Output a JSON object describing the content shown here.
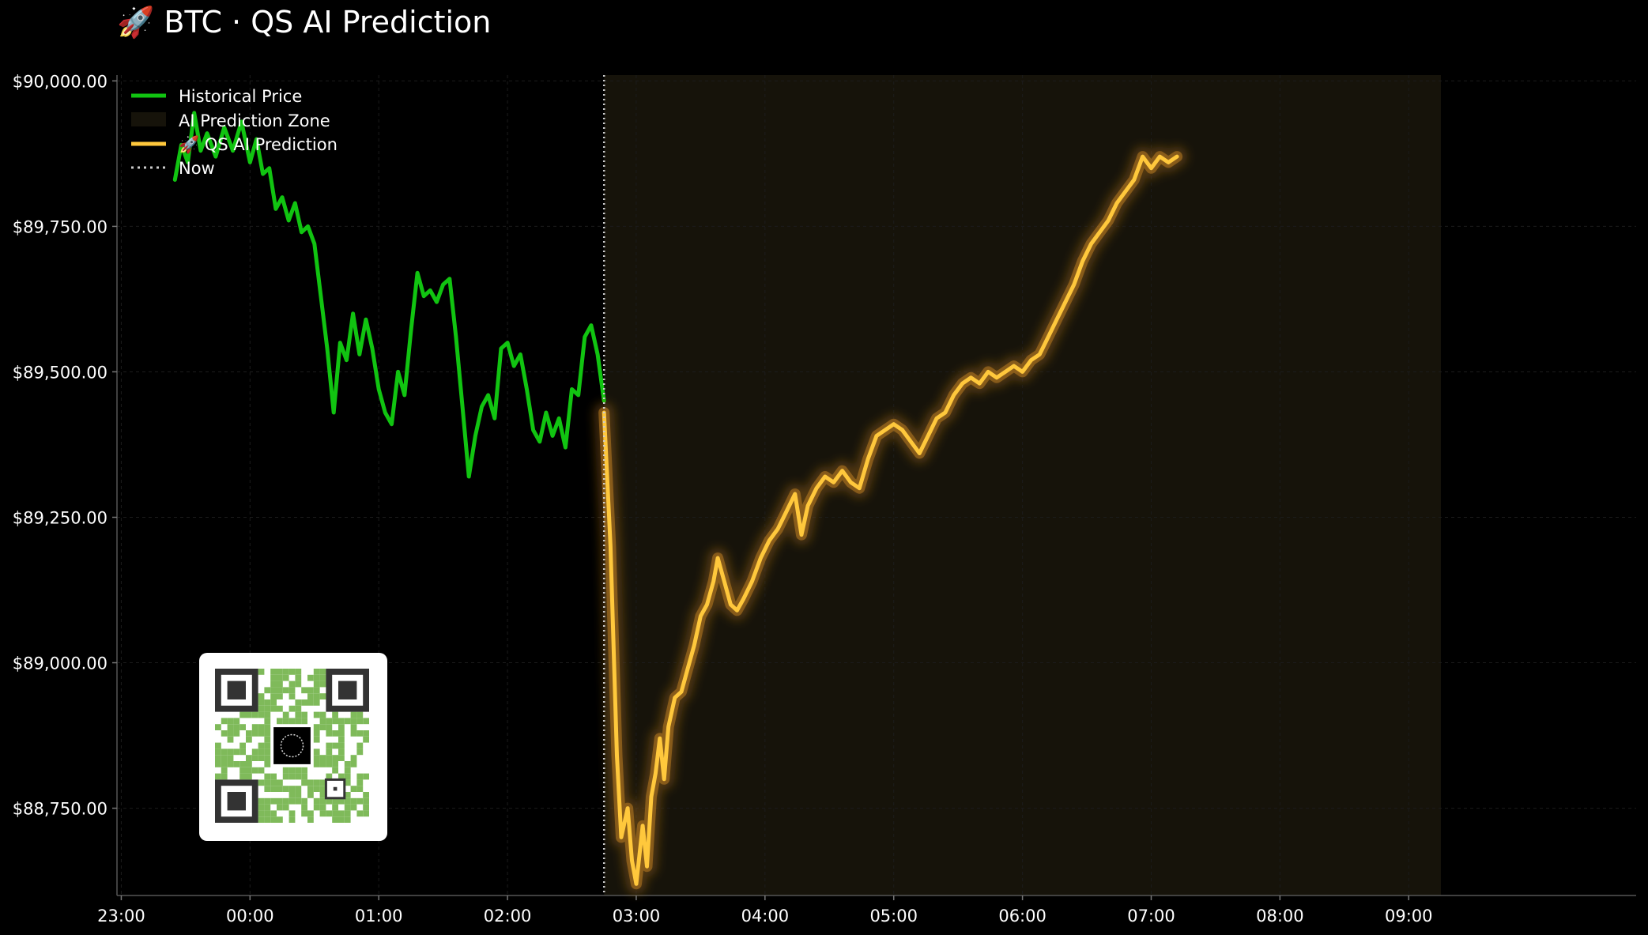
{
  "chart_data": {
    "type": "line",
    "title": "🚀 BTC · QS AI Prediction",
    "xlabel": "",
    "ylabel": "",
    "x_ticks": [
      "23:00",
      "00:00",
      "01:00",
      "02:00",
      "03:00",
      "04:00",
      "05:00",
      "06:00",
      "07:00",
      "08:00",
      "09:00"
    ],
    "y_ticks": [
      "$88,750.00",
      "$89,000.00",
      "$89,250.00",
      "$89,500.00",
      "$89,750.00",
      "$90,000.00"
    ],
    "ylim": [
      88600,
      90010
    ],
    "xlim_hours": [
      "22:58",
      "10:46"
    ],
    "grid": true,
    "legend": {
      "position": "top-left",
      "entries": [
        "Historical Price",
        "AI Prediction Zone",
        "🚀 QS AI Prediction",
        "Now"
      ]
    },
    "now_time": "02:45",
    "prediction_zone": [
      "02:45",
      "09:15"
    ],
    "series": [
      {
        "name": "Historical Price",
        "color": "#11c411",
        "points": [
          [
            "23:25",
            89830
          ],
          [
            "23:28",
            89890
          ],
          [
            "23:31",
            89860
          ],
          [
            "23:34",
            89945
          ],
          [
            "23:37",
            89880
          ],
          [
            "23:40",
            89910
          ],
          [
            "23:44",
            89870
          ],
          [
            "23:48",
            89920
          ],
          [
            "23:52",
            89880
          ],
          [
            "23:56",
            89930
          ],
          [
            "00:00",
            89860
          ],
          [
            "00:03",
            89900
          ],
          [
            "00:06",
            89840
          ],
          [
            "00:09",
            89850
          ],
          [
            "00:12",
            89780
          ],
          [
            "00:15",
            89800
          ],
          [
            "00:18",
            89760
          ],
          [
            "00:21",
            89790
          ],
          [
            "00:24",
            89740
          ],
          [
            "00:27",
            89750
          ],
          [
            "00:30",
            89720
          ],
          [
            "00:33",
            89630
          ],
          [
            "00:36",
            89540
          ],
          [
            "00:39",
            89430
          ],
          [
            "00:42",
            89550
          ],
          [
            "00:45",
            89520
          ],
          [
            "00:48",
            89600
          ],
          [
            "00:51",
            89530
          ],
          [
            "00:54",
            89590
          ],
          [
            "00:57",
            89540
          ],
          [
            "01:00",
            89470
          ],
          [
            "01:03",
            89430
          ],
          [
            "01:06",
            89410
          ],
          [
            "01:09",
            89500
          ],
          [
            "01:12",
            89460
          ],
          [
            "01:15",
            89570
          ],
          [
            "01:18",
            89670
          ],
          [
            "01:21",
            89630
          ],
          [
            "01:24",
            89640
          ],
          [
            "01:27",
            89620
          ],
          [
            "01:30",
            89650
          ],
          [
            "01:33",
            89660
          ],
          [
            "01:36",
            89560
          ],
          [
            "01:39",
            89440
          ],
          [
            "01:42",
            89320
          ],
          [
            "01:45",
            89390
          ],
          [
            "01:48",
            89440
          ],
          [
            "01:51",
            89460
          ],
          [
            "01:54",
            89420
          ],
          [
            "01:57",
            89540
          ],
          [
            "02:00",
            89550
          ],
          [
            "02:03",
            89510
          ],
          [
            "02:06",
            89530
          ],
          [
            "02:09",
            89470
          ],
          [
            "02:12",
            89400
          ],
          [
            "02:15",
            89380
          ],
          [
            "02:18",
            89430
          ],
          [
            "02:21",
            89390
          ],
          [
            "02:24",
            89420
          ],
          [
            "02:27",
            89370
          ],
          [
            "02:30",
            89470
          ],
          [
            "02:33",
            89460
          ],
          [
            "02:36",
            89560
          ],
          [
            "02:39",
            89580
          ],
          [
            "02:42",
            89530
          ],
          [
            "02:45",
            89450
          ]
        ]
      },
      {
        "name": "🚀 QS AI Prediction",
        "color": "#ffc83c",
        "points": [
          [
            "02:45",
            89430
          ],
          [
            "02:48",
            89200
          ],
          [
            "02:51",
            88840
          ],
          [
            "02:53",
            88700
          ],
          [
            "02:56",
            88750
          ],
          [
            "02:58",
            88660
          ],
          [
            "03:00",
            88620
          ],
          [
            "03:03",
            88720
          ],
          [
            "03:05",
            88650
          ],
          [
            "03:07",
            88770
          ],
          [
            "03:09",
            88810
          ],
          [
            "03:11",
            88870
          ],
          [
            "03:13",
            88800
          ],
          [
            "03:15",
            88890
          ],
          [
            "03:18",
            88940
          ],
          [
            "03:21",
            88950
          ],
          [
            "03:24",
            88990
          ],
          [
            "03:27",
            89030
          ],
          [
            "03:30",
            89080
          ],
          [
            "03:33",
            89100
          ],
          [
            "03:36",
            89140
          ],
          [
            "03:38",
            89180
          ],
          [
            "03:41",
            89140
          ],
          [
            "03:44",
            89100
          ],
          [
            "03:47",
            89090
          ],
          [
            "03:50",
            89110
          ],
          [
            "03:54",
            89140
          ],
          [
            "03:58",
            89180
          ],
          [
            "04:02",
            89210
          ],
          [
            "04:06",
            89230
          ],
          [
            "04:10",
            89260
          ],
          [
            "04:14",
            89290
          ],
          [
            "04:17",
            89220
          ],
          [
            "04:20",
            89270
          ],
          [
            "04:24",
            89300
          ],
          [
            "04:28",
            89320
          ],
          [
            "04:32",
            89310
          ],
          [
            "04:36",
            89330
          ],
          [
            "04:40",
            89310
          ],
          [
            "04:44",
            89300
          ],
          [
            "04:48",
            89350
          ],
          [
            "04:52",
            89390
          ],
          [
            "04:56",
            89400
          ],
          [
            "05:00",
            89410
          ],
          [
            "05:04",
            89400
          ],
          [
            "05:08",
            89380
          ],
          [
            "05:12",
            89360
          ],
          [
            "05:16",
            89390
          ],
          [
            "05:20",
            89420
          ],
          [
            "05:24",
            89430
          ],
          [
            "05:28",
            89460
          ],
          [
            "05:32",
            89480
          ],
          [
            "05:36",
            89490
          ],
          [
            "05:40",
            89480
          ],
          [
            "05:44",
            89500
          ],
          [
            "05:48",
            89490
          ],
          [
            "05:52",
            89500
          ],
          [
            "05:56",
            89510
          ],
          [
            "06:00",
            89500
          ],
          [
            "06:04",
            89520
          ],
          [
            "06:08",
            89530
          ],
          [
            "06:12",
            89560
          ],
          [
            "06:16",
            89590
          ],
          [
            "06:20",
            89620
          ],
          [
            "06:24",
            89650
          ],
          [
            "06:28",
            89690
          ],
          [
            "06:32",
            89720
          ],
          [
            "06:36",
            89740
          ],
          [
            "06:40",
            89760
          ],
          [
            "06:44",
            89790
          ],
          [
            "06:48",
            89810
          ],
          [
            "06:52",
            89830
          ],
          [
            "06:56",
            89870
          ],
          [
            "07:00",
            89850
          ],
          [
            "07:04",
            89870
          ],
          [
            "07:08",
            89860
          ],
          [
            "07:12",
            89870
          ]
        ]
      }
    ]
  }
}
